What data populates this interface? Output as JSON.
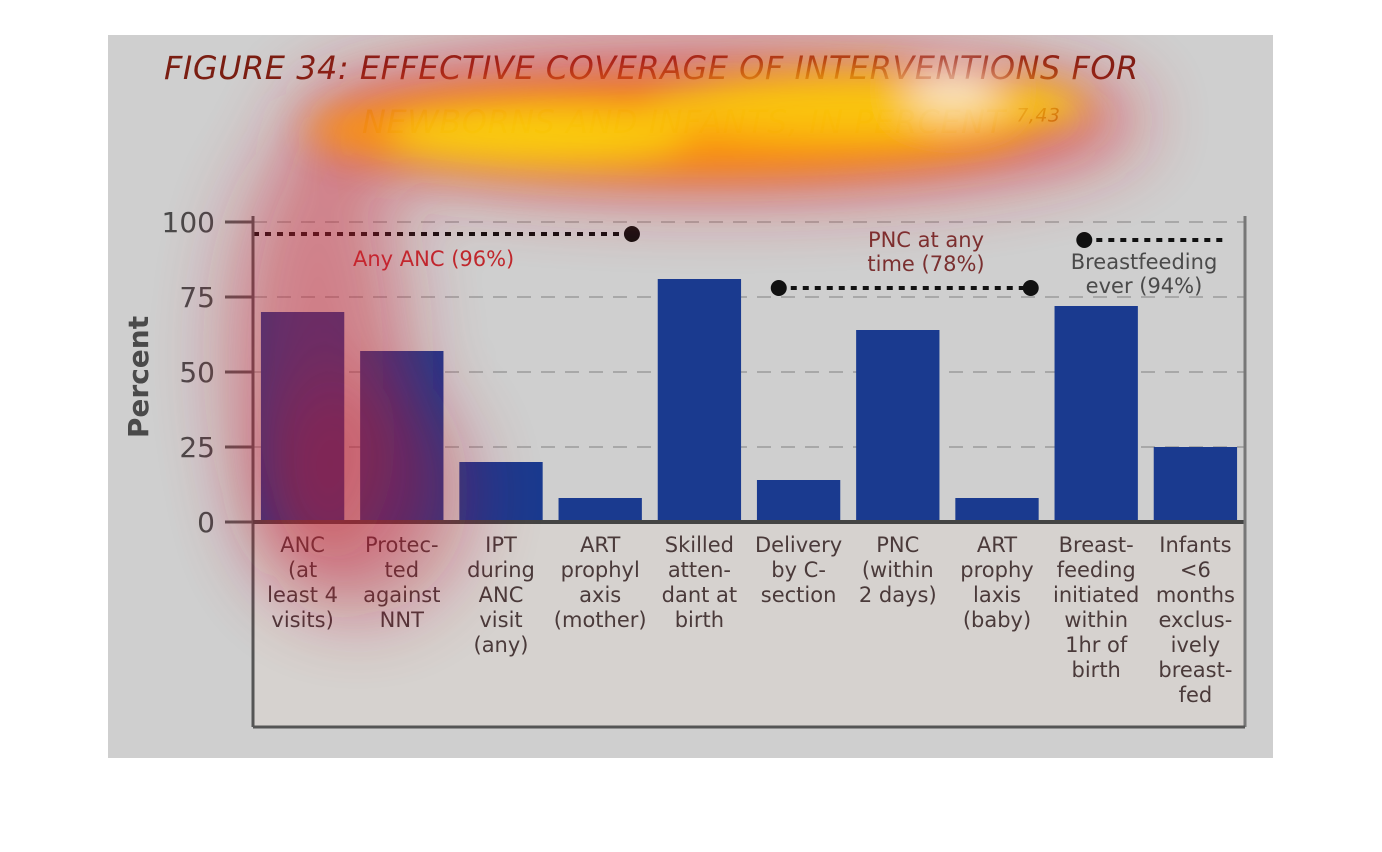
{
  "figure": {
    "title_line1": "FIGURE 34: EFFECTIVE COVERAGE OF INTERVENTIONS FOR",
    "title_line2": "NEWBORNS AND INFANTS, IN PERCENT",
    "title_superscript": "7,43"
  },
  "chart_data": {
    "type": "bar",
    "ylabel": "Percent",
    "ylim": [
      0,
      100
    ],
    "yticks": [
      0,
      25,
      50,
      75,
      100
    ],
    "grid": "horizontal-dashed",
    "categories": [
      [
        "ANC",
        "(at",
        "least 4",
        "visits)"
      ],
      [
        "Protec-",
        "ted",
        "against",
        "NNT"
      ],
      [
        "IPT",
        "during",
        "ANC",
        "visit",
        "(any)"
      ],
      [
        "ART",
        "prophyl",
        "axis",
        "(mother)"
      ],
      [
        "Skilled",
        "atten-",
        "dant at",
        "birth"
      ],
      [
        "Delivery",
        "by C-",
        "section"
      ],
      [
        "PNC",
        "(within",
        "2 days)"
      ],
      [
        "ART",
        "prophy",
        "laxis",
        "(baby)"
      ],
      [
        "Breast-",
        "feeding",
        "initiated",
        "within",
        "1hr of",
        "birth"
      ],
      [
        "Infants",
        "<6",
        "months",
        "exclus-",
        "ively",
        "breast-",
        "fed"
      ]
    ],
    "values": [
      70,
      57,
      20,
      8,
      81,
      14,
      64,
      8,
      72,
      25
    ],
    "bar_color": "#1a3a8f",
    "reference_lines": [
      {
        "label": "Any ANC (96%)",
        "value": 96,
        "from_category": 0,
        "to_category": 3,
        "label_color": "#c0282d"
      },
      {
        "label_lines": [
          "PNC at any",
          "time (78%)"
        ],
        "value": 78,
        "from_category": 5,
        "to_category": 7,
        "label_color": "#7a3030"
      },
      {
        "label_lines": [
          "Breastfeeding",
          "ever (94%)"
        ],
        "value": 94,
        "from_category": 8,
        "to_category": 9,
        "label_color": "#4a4a4a"
      }
    ]
  }
}
